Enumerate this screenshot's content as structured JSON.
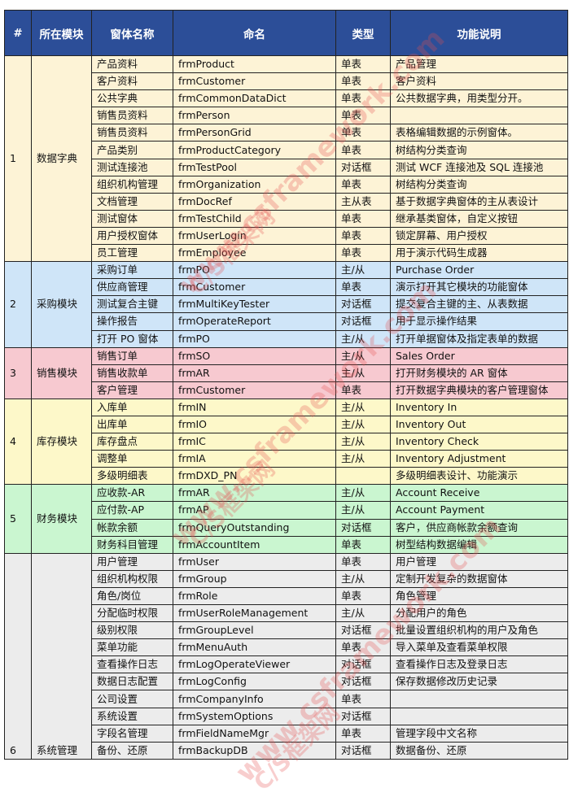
{
  "headers": [
    "#",
    "所在模块",
    "窗体名称",
    "命名",
    "类型",
    "功能说明"
  ],
  "groups": [
    {
      "no": "1",
      "module": "数据字典",
      "color": "#fdf3d6",
      "rows": [
        [
          "产品资料",
          "frmProduct",
          "单表",
          "产品管理"
        ],
        [
          "客户资料",
          "frmCustomer",
          "单表",
          "客户资料"
        ],
        [
          "公共字典",
          "frmCommonDataDict",
          "单表",
          "公共数据字典，用类型分开。"
        ],
        [
          "销售员资料",
          "frmPerson",
          "单表",
          ""
        ],
        [
          "销售员资料",
          "frmPersonGrid",
          "单表",
          "表格编辑数据的示例窗体。"
        ],
        [
          "产品类别",
          "frmProductCategory",
          "单表",
          "树结构分类查询"
        ],
        [
          "测试连接池",
          "frmTestPool",
          "对话框",
          "测试 WCF 连接池及 SQL 连接池"
        ],
        [
          "组织机构管理",
          "frmOrganization",
          "单表",
          "树结构分类查询"
        ],
        [
          "文档管理",
          "frmDocRef",
          "主从表",
          "基于数据字典窗体的主从表设计"
        ],
        [
          "测试窗体",
          "frmTestChild",
          "单表",
          "继承基类窗体，自定义按钮"
        ],
        [
          "用户授权窗体",
          "frmUserLogin",
          "单表",
          "锁定屏幕、用户授权"
        ],
        [
          "员工管理",
          "frmEmployee",
          "单表",
          "用于演示代码生成器"
        ]
      ]
    },
    {
      "no": "2",
      "module": "采购模块",
      "color": "#cfe5f8",
      "rows": [
        [
          "采购订单",
          "frmPO",
          "主/从",
          "Purchase Order"
        ],
        [
          "供应商管理",
          "frmCustomer",
          "单表",
          "演示打开其它模块的功能窗体"
        ],
        [
          "测试复合主键",
          "frmMultiKeyTester",
          "对话框",
          "提交复合主键的主、从表数据"
        ],
        [
          "操作报告",
          "frmOperateReport",
          "对话框",
          "用于显示操作结果"
        ],
        [
          "打开 PO 窗体",
          "frmPO",
          "主/从",
          "打开单据窗体及指定表单的数据"
        ]
      ]
    },
    {
      "no": "3",
      "module": "销售模块",
      "color": "#f7c9d0",
      "rows": [
        [
          "销售订单",
          "frmSO",
          "主/从",
          "Sales Order"
        ],
        [
          "销售收款单",
          "frmAR",
          "主/从",
          "打开财务模块的 AR 窗体"
        ],
        [
          "客户管理",
          "frmCustomer",
          "单表",
          "打开数据字典模块的客户管理窗体"
        ]
      ]
    },
    {
      "no": "4",
      "module": "库存模块",
      "color": "#fdf8c9",
      "rows": [
        [
          "入库单",
          "frmIN",
          "主/从",
          "Inventory In"
        ],
        [
          "出库单",
          "frmIO",
          "主/从",
          "Inventory Out"
        ],
        [
          "库存盘点",
          "frmIC",
          "主/从",
          "Inventory Check"
        ],
        [
          "调整单",
          "frmIA",
          "主/从",
          "Inventory Adjustment"
        ],
        [
          "多级明细表",
          "frmDXD_PN",
          "",
          "多级明细表设计、功能演示"
        ]
      ]
    },
    {
      "no": "5",
      "module": "财务模块",
      "color": "#caf6d0",
      "rows": [
        [
          "应收款-AR",
          "frmAR",
          "主/从",
          "Account Receive"
        ],
        [
          "应付款-AP",
          "frmAP",
          "主/从",
          "Account Payment"
        ],
        [
          "帐款余额",
          "frmQueryOutstanding",
          "对话框",
          "客户，供应商帐款余额查询"
        ],
        [
          "财务科目管理",
          "frmAccountItem",
          "单表",
          "树型结构数据编辑"
        ]
      ]
    },
    {
      "no": "6",
      "module": "系统管理",
      "color": "#ececec",
      "rows": [
        [
          "用户管理",
          "frmUser",
          "单表",
          "用户管理"
        ],
        [
          "组织机构权限",
          "frmGroup",
          "主/从",
          "定制开发复杂的数据窗体"
        ],
        [
          "角色/岗位",
          "frmRole",
          "单表",
          "角色管理"
        ],
        [
          "分配临时权限",
          "frmUserRoleManagement",
          "主/从",
          "分配用户的角色"
        ],
        [
          "级别权限",
          "frmGroupLevel",
          "对话框",
          "批量设置组织机构的用户及角色"
        ],
        [
          "菜单功能",
          "frmMenuAuth",
          "单表",
          "导入菜单及查看菜单权限"
        ],
        [
          "查看操作日志",
          "frmLogOperateViewer",
          "对话框",
          "查看操作日志及登录日志"
        ],
        [
          "数据日志配置",
          "frmLogConfig",
          "对话框",
          "保存数据修改历史记录"
        ],
        [
          "公司设置",
          "frmCompanyInfo",
          "单表",
          ""
        ],
        [
          "系统设置",
          "frmSystemOptions",
          "对话框",
          ""
        ],
        [
          "字段名管理",
          "frmFieldNameMgr",
          "单表",
          "管理字段中文名称"
        ],
        [
          "备份、还原",
          "frmBackupDB",
          "对话框",
          "数据备份、还原"
        ]
      ]
    }
  ],
  "watermark": {
    "url": "www.csframework.com",
    "brand": "C/S框架网"
  },
  "colors": {
    "header": "#2c4e98"
  }
}
